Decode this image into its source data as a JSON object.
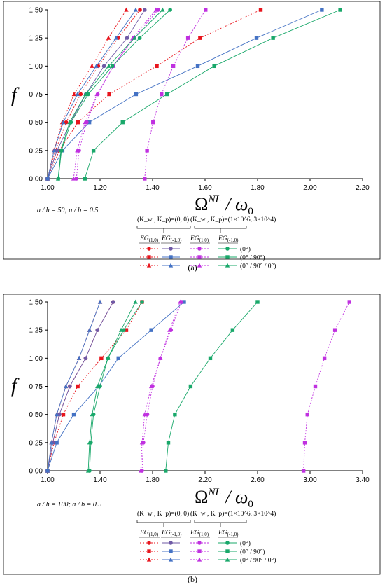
{
  "chart_data": [
    {
      "type": "line",
      "panel_label": "(a)",
      "xlabel": "Ω^NL / ω0",
      "ylabel": "f",
      "note": "a / h = 50;  a / b = 0.5",
      "xlim": [
        1.0,
        2.2
      ],
      "ylim": [
        0.0,
        1.5
      ],
      "xticks": [
        "1.00",
        "1.20",
        "1.40",
        "1.60",
        "1.80",
        "2.00",
        "2.20"
      ],
      "yticks": [
        "0.00",
        "0.25",
        "0.50",
        "0.75",
        "1.00",
        "1.25",
        "1.50"
      ],
      "x_values": [
        1.0,
        1.2,
        1.4,
        1.6,
        1.8,
        2.0,
        2.2
      ],
      "y_values": [
        0,
        0.25,
        0.5,
        0.75,
        1.0,
        1.25,
        1.5
      ],
      "f": [
        0,
        0.25,
        0.5,
        0.75,
        1.0,
        1.25,
        1.5
      ],
      "series": [
        {
          "group": "k0",
          "mat": "EG10",
          "ply": "p0",
          "x": [
            1.0,
            1.03,
            1.071,
            1.126,
            1.193,
            1.269,
            1.352
          ]
        },
        {
          "group": "k0",
          "mat": "EG10",
          "ply": "p090",
          "x": [
            1.0,
            1.045,
            1.116,
            1.235,
            1.416,
            1.581,
            1.812
          ]
        },
        {
          "group": "k0",
          "mat": "EG10",
          "ply": "p09",
          "x": [
            1.0,
            1.024,
            1.056,
            1.101,
            1.169,
            1.232,
            1.3
          ]
        },
        {
          "group": "k0",
          "mat": "EGm10",
          "ply": "p0",
          "x": [
            1.0,
            1.036,
            1.088,
            1.146,
            1.215,
            1.303,
            1.37
          ]
        },
        {
          "group": "k0",
          "mat": "EGm10",
          "ply": "p090",
          "x": [
            1.0,
            1.057,
            1.159,
            1.337,
            1.572,
            1.796,
            2.045
          ]
        },
        {
          "group": "k0",
          "mat": "EGm10",
          "ply": "p09",
          "x": [
            1.0,
            1.025,
            1.06,
            1.114,
            1.186,
            1.261,
            1.336
          ]
        },
        {
          "group": "kw",
          "mat": "EG10",
          "ply": "p0",
          "x": [
            1.11,
            1.12,
            1.149,
            1.191,
            1.25,
            1.33,
            1.421
          ]
        },
        {
          "group": "kw",
          "mat": "EG10",
          "ply": "p090",
          "x": [
            1.37,
            1.379,
            1.402,
            1.434,
            1.479,
            1.535,
            1.602
          ]
        },
        {
          "group": "kw",
          "mat": "EG10",
          "ply": "p09",
          "x": [
            1.099,
            1.113,
            1.143,
            1.188,
            1.251,
            1.324,
            1.413
          ]
        },
        {
          "group": "kw",
          "mat": "EGm10",
          "ply": "p0",
          "x": [
            1.041,
            1.053,
            1.089,
            1.155,
            1.247,
            1.351,
            1.467
          ]
        },
        {
          "group": "kw",
          "mat": "EGm10",
          "ply": "p090",
          "x": [
            1.142,
            1.175,
            1.286,
            1.455,
            1.635,
            1.859,
            2.115
          ]
        },
        {
          "group": "kw",
          "mat": "EGm10",
          "ply": "p09",
          "x": [
            1.04,
            1.051,
            1.084,
            1.145,
            1.233,
            1.331,
            1.438
          ]
        }
      ]
    },
    {
      "type": "line",
      "panel_label": "(b)",
      "xlabel": "Ω^NL / ω0",
      "ylabel": "f",
      "note": "a / h = 100;  a / b = 0.5",
      "xlim": [
        1.0,
        3.4
      ],
      "ylim": [
        0.0,
        1.5
      ],
      "xticks": [
        "1.00",
        "1.40",
        "1.80",
        "2.20",
        "2.60",
        "3.00",
        "3.40"
      ],
      "yticks": [
        "0.00",
        "0.25",
        "0.50",
        "0.75",
        "1.00",
        "1.25",
        "1.50"
      ],
      "x_values": [
        1.0,
        1.4,
        1.8,
        2.2,
        2.6,
        3.0,
        3.4
      ],
      "y_values": [
        0,
        0.25,
        0.5,
        0.75,
        1.0,
        1.25,
        1.5
      ],
      "f": [
        0,
        0.25,
        0.5,
        0.75,
        1.0,
        1.25,
        1.5
      ],
      "series": [
        {
          "group": "k0",
          "mat": "EG10",
          "ply": "p0",
          "x": [
            1.0,
            1.04,
            1.09,
            1.17,
            1.29,
            1.38,
            1.5
          ]
        },
        {
          "group": "k0",
          "mat": "EG10",
          "ply": "p090",
          "x": [
            1.0,
            1.05,
            1.12,
            1.23,
            1.41,
            1.6,
            1.72
          ]
        },
        {
          "group": "k0",
          "mat": "EG10",
          "ply": "p09",
          "x": [
            1.0,
            1.03,
            1.07,
            1.14,
            1.24,
            1.32,
            1.4
          ]
        },
        {
          "group": "k0",
          "mat": "EGm10",
          "ply": "p0",
          "x": [
            1.0,
            1.04,
            1.09,
            1.17,
            1.29,
            1.38,
            1.5
          ]
        },
        {
          "group": "k0",
          "mat": "EGm10",
          "ply": "p090",
          "x": [
            1.0,
            1.07,
            1.2,
            1.39,
            1.54,
            1.79,
            2.04
          ]
        },
        {
          "group": "k0",
          "mat": "EGm10",
          "ply": "p09",
          "x": [
            1.0,
            1.03,
            1.07,
            1.14,
            1.24,
            1.32,
            1.4
          ]
        },
        {
          "group": "kw",
          "mat": "EG10",
          "ply": "p0",
          "x": [
            1.72,
            1.73,
            1.76,
            1.8,
            1.86,
            1.94,
            2.02
          ]
        },
        {
          "group": "kw",
          "mat": "EG10",
          "ply": "p090",
          "x": [
            2.95,
            2.96,
            2.98,
            3.04,
            3.11,
            3.19,
            3.3
          ]
        },
        {
          "group": "kw",
          "mat": "EG10",
          "ply": "p09",
          "x": [
            1.71,
            1.72,
            1.74,
            1.79,
            1.86,
            1.93,
            2.01
          ]
        },
        {
          "group": "kw",
          "mat": "EGm10",
          "ply": "p0",
          "x": [
            1.32,
            1.33,
            1.35,
            1.4,
            1.46,
            1.58,
            1.72
          ]
        },
        {
          "group": "kw",
          "mat": "EGm10",
          "ply": "p090",
          "x": [
            1.9,
            1.92,
            1.97,
            2.09,
            2.24,
            2.41,
            2.6
          ]
        },
        {
          "group": "kw",
          "mat": "EGm10",
          "ply": "p09",
          "x": [
            1.31,
            1.32,
            1.34,
            1.38,
            1.46,
            1.56,
            1.67
          ]
        }
      ]
    }
  ],
  "legend": {
    "group_k0": "(K_w , K_p)=(0, 0)",
    "group_kw": "(K_w , K_p)=(1×10^6, 3×10^4)",
    "mat_EG10": "EG(1,0)",
    "mat_EGm10": "EG(-1,0)",
    "ply_p0": "(0°)",
    "ply_p090": "(0° / 90°)",
    "ply_p09": "(0° / 90° / 0°)"
  },
  "colors": {
    "k0_EG10": "#e8141c",
    "k0_EGm10": "#4472c4",
    "kw_EG10": "#c030e0",
    "kw_EGm10": "#19a86a",
    "k0_EGm10_p0": "#6f5aa6"
  },
  "markers": {
    "p0": "circle",
    "p090": "square",
    "p09": "triangle"
  }
}
